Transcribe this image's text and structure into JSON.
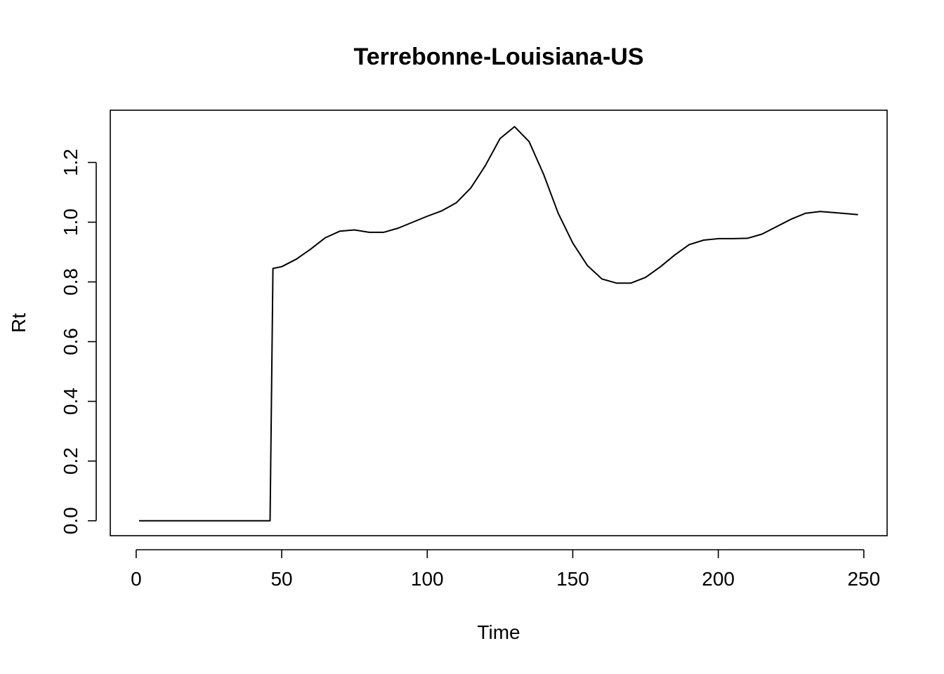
{
  "chart_data": {
    "type": "line",
    "title": "Terrebonne-Louisiana-US",
    "xlabel": "Time",
    "ylabel": "Rt",
    "xlim": [
      -8.9,
      258
    ],
    "ylim": [
      -0.05,
      1.375
    ],
    "x_ticks": [
      0,
      50,
      100,
      150,
      200,
      250
    ],
    "x_tick_labels": [
      "0",
      "50",
      "100",
      "150",
      "200",
      "250"
    ],
    "y_ticks": [
      0.0,
      0.2,
      0.4,
      0.6,
      0.8,
      1.0,
      1.2
    ],
    "y_tick_labels": [
      "0.0",
      "0.2",
      "0.4",
      "0.6",
      "0.8",
      "1.0",
      "1.2"
    ],
    "grid": false,
    "legend": "none",
    "series": [
      {
        "color": "#000000",
        "x": [
          1,
          46,
          47,
          50,
          55,
          60,
          65,
          70,
          75,
          80,
          85,
          90,
          95,
          100,
          105,
          110,
          115,
          120,
          125,
          130,
          135,
          140,
          145,
          150,
          155,
          160,
          165,
          170,
          175,
          180,
          185,
          190,
          195,
          200,
          205,
          210,
          215,
          220,
          225,
          230,
          235,
          240,
          245,
          248
        ],
        "y": [
          0,
          0,
          0.845,
          0.851,
          0.876,
          0.91,
          0.948,
          0.97,
          0.974,
          0.966,
          0.966,
          0.98,
          1.0,
          1.02,
          1.038,
          1.065,
          1.115,
          1.19,
          1.28,
          1.32,
          1.27,
          1.16,
          1.03,
          0.93,
          0.855,
          0.81,
          0.796,
          0.796,
          0.815,
          0.85,
          0.89,
          0.925,
          0.94,
          0.945,
          0.945,
          0.946,
          0.96,
          0.985,
          1.01,
          1.03,
          1.036,
          1.032,
          1.028,
          1.025
        ]
      }
    ]
  }
}
